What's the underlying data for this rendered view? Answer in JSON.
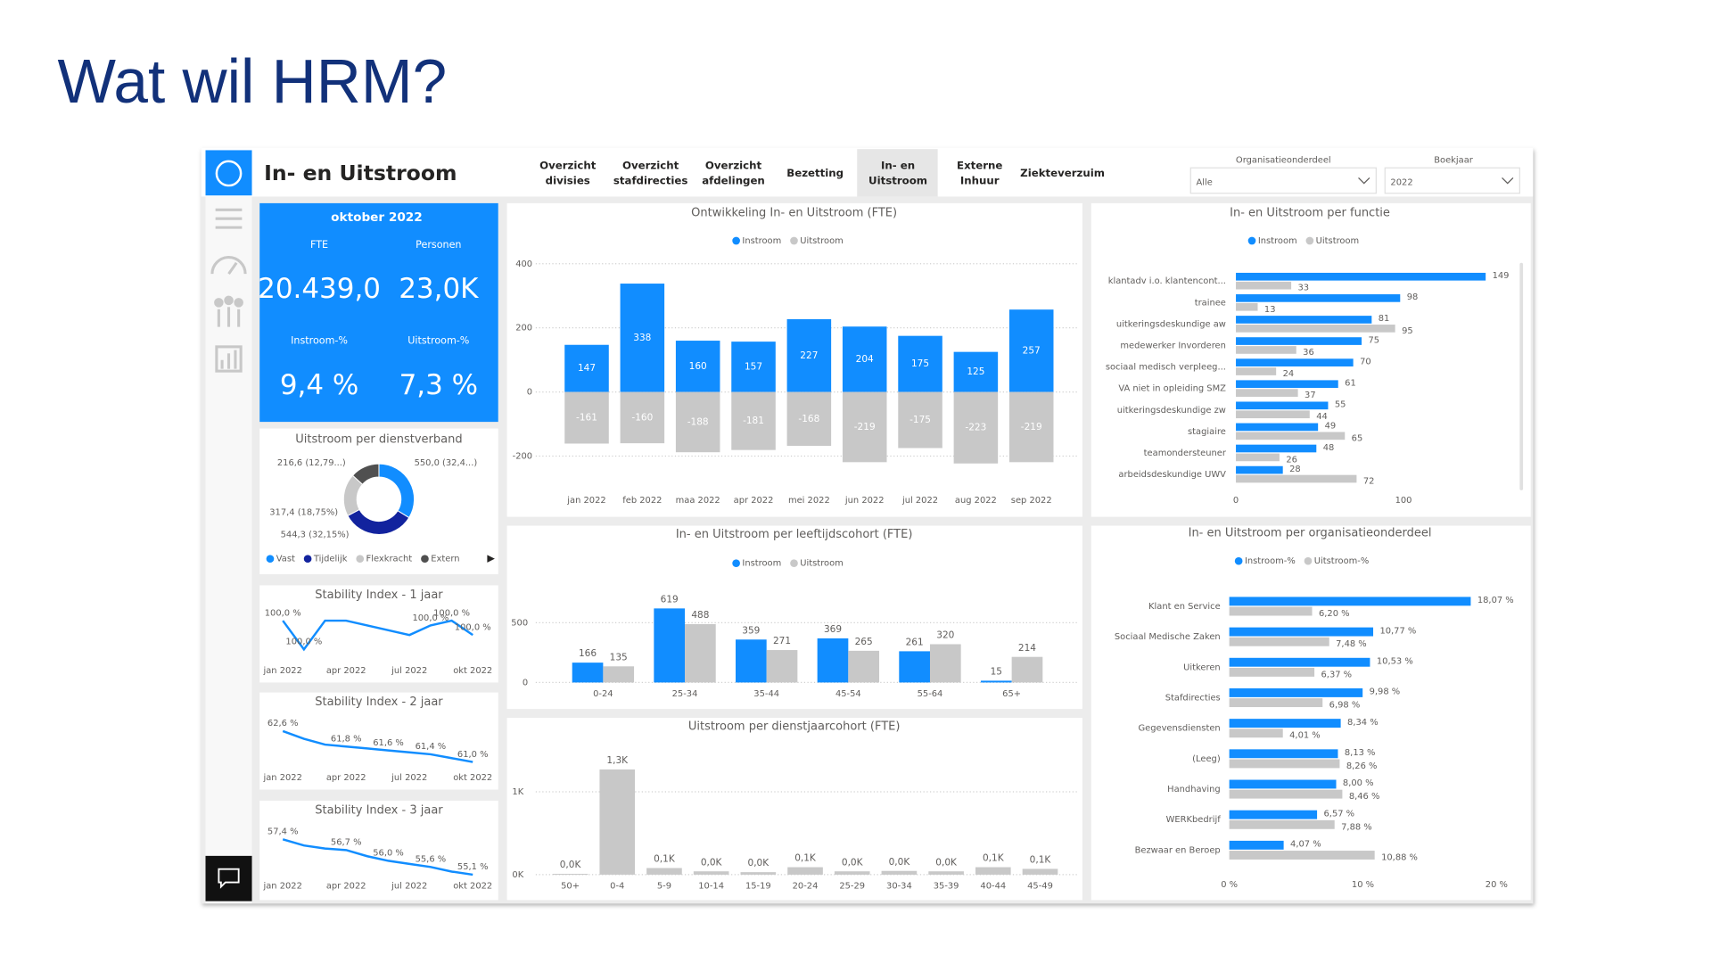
{
  "slide_title": "Wat wil HRM?",
  "header": {
    "title": "In- en Uitstroom"
  },
  "nav": [
    [
      "Overzicht",
      "divisies"
    ],
    [
      "Overzicht",
      "stafdirecties"
    ],
    [
      "Overzicht",
      "afdelingen"
    ],
    [
      "Bezetting"
    ],
    [
      "In- en",
      "Uitstroom"
    ],
    [
      "Externe",
      "Inhuur"
    ],
    [
      "Ziekteverzuim"
    ]
  ],
  "filters": [
    {
      "label": "Organisatieonderdeel",
      "value": "Alle"
    },
    {
      "label": "Boekjaar",
      "value": "2022"
    }
  ],
  "kpi": {
    "period": "oktober 2022",
    "items": [
      {
        "label": "FTE",
        "value": "20.439,0"
      },
      {
        "label": "Personen",
        "value": "23,0K"
      },
      {
        "label": "Instroom-%",
        "value": "9,4 %"
      },
      {
        "label": "Uitstroom-%",
        "value": "7,3 %"
      }
    ]
  },
  "chart_data": [
    {
      "type": "bar",
      "stacked": true,
      "title": "Ontwikkeling In- en Uitstroom (FTE)",
      "categories": [
        "jan 2022",
        "feb 2022",
        "maa 2022",
        "apr 2022",
        "mei 2022",
        "jun 2022",
        "jul 2022",
        "aug 2022",
        "sep 2022"
      ],
      "series": [
        {
          "name": "Instroom",
          "color": "#118dff",
          "values": [
            147,
            338,
            160,
            157,
            227,
            204,
            175,
            125,
            257
          ]
        },
        {
          "name": "Uitstroom",
          "color": "#c8c8c8",
          "values": [
            -161,
            -160,
            -188,
            -181,
            -168,
            -219,
            -175,
            -223,
            -219
          ]
        }
      ],
      "ylim": [
        -250,
        420
      ],
      "yticks": [
        400,
        200,
        0,
        -200
      ],
      "grid": true
    },
    {
      "type": "hbar",
      "title": "In- en Uitstroom per functie",
      "categories": [
        "klantadv i.o. klantencont...",
        "trainee",
        "uitkeringsdeskundige aw",
        "medewerker Invorderen",
        "sociaal medisch verpleeg...",
        "VA niet in opleiding SMZ",
        "uitkeringsdeskundige zw",
        "stagiaire",
        "teamondersteuner",
        "arbeidsdeskundige UWV"
      ],
      "series": [
        {
          "name": "Instroom",
          "color": "#118dff",
          "values": [
            149,
            98,
            81,
            75,
            70,
            61,
            55,
            49,
            48,
            28
          ]
        },
        {
          "name": "Uitstroom",
          "color": "#c8c8c8",
          "values": [
            33,
            13,
            95,
            36,
            24,
            37,
            44,
            65,
            26,
            72
          ]
        }
      ],
      "xlim": [
        0,
        168
      ],
      "xticks": [
        0,
        100
      ]
    },
    {
      "type": "donut",
      "title": "Uitstroom per dienstverband",
      "categories": [
        "Vast",
        "Tijdelijk",
        "Flexkracht",
        "Extern"
      ],
      "values": [
        550.0,
        544.3,
        317.4,
        216.6
      ],
      "value_labels": [
        "550,0 (32,4...)",
        "544,3 (32,15%)",
        "317,4 (18,75%)",
        "216,6 (12,79...)"
      ],
      "colors": [
        "#118dff",
        "#12239e",
        "#c8c8c8",
        "#505050"
      ]
    },
    {
      "type": "line",
      "title": "Stability Index - 1 jaar",
      "categories": [
        "jan 2022",
        null,
        null,
        "apr 2022",
        null,
        null,
        "jul 2022",
        null,
        null,
        "okt 2022"
      ],
      "values": [
        99.99,
        99.96,
        99.99,
        99.99,
        99.985,
        99.98,
        99.975,
        99.985,
        99.99,
        99.975
      ],
      "value_labels": [
        "100,0 %",
        "100,0 %",
        null,
        null,
        null,
        null,
        null,
        "100,0 %",
        "100,0 %",
        "100,0 %"
      ],
      "color": "#118dff"
    },
    {
      "type": "line",
      "title": "Stability Index - 2 jaar",
      "categories": [
        "jan 2022",
        null,
        null,
        "apr 2022",
        null,
        null,
        "jul 2022",
        null,
        null,
        "okt 2022"
      ],
      "values": [
        62.6,
        62.2,
        61.9,
        61.8,
        61.7,
        61.6,
        61.5,
        61.4,
        61.2,
        61.0
      ],
      "value_labels": [
        "62,6 %",
        null,
        null,
        "61,8 %",
        null,
        "61,6 %",
        null,
        "61,4 %",
        null,
        "61,0 %"
      ],
      "color": "#118dff"
    },
    {
      "type": "line",
      "title": "Stability Index - 3 jaar",
      "categories": [
        "jan 2022",
        null,
        null,
        "apr 2022",
        null,
        null,
        "jul 2022",
        null,
        null,
        "okt 2022"
      ],
      "values": [
        57.4,
        57.0,
        56.8,
        56.7,
        56.3,
        56.0,
        55.8,
        55.6,
        55.3,
        55.1
      ],
      "value_labels": [
        "57,4 %",
        null,
        null,
        "56,7 %",
        null,
        "56,0 %",
        null,
        "55,6 %",
        null,
        "55,1 %"
      ],
      "color": "#118dff"
    },
    {
      "type": "bar",
      "title": "In- en Uitstroom per leeftijdscohort (FTE)",
      "categories": [
        "0-24",
        "25-34",
        "35-44",
        "45-54",
        "55-64",
        "65+"
      ],
      "series": [
        {
          "name": "Instroom",
          "color": "#118dff",
          "values": [
            166,
            619,
            359,
            369,
            261,
            15
          ]
        },
        {
          "name": "Uitstroom",
          "color": "#c8c8c8",
          "values": [
            135,
            488,
            271,
            265,
            320,
            214
          ]
        }
      ],
      "ylim": [
        0,
        720
      ],
      "yticks": [
        0,
        500
      ],
      "grid": true
    },
    {
      "type": "bar",
      "title": "Uitstroom per dienstjaarcohort (FTE)",
      "categories": [
        "50+",
        "0-4",
        "5-9",
        "10-14",
        "15-19",
        "20-24",
        "25-29",
        "30-34",
        "35-39",
        "40-44",
        "45-49"
      ],
      "values": [
        10,
        1270,
        80,
        40,
        30,
        90,
        40,
        45,
        40,
        90,
        70
      ],
      "value_labels": [
        "0,0K",
        "1,3K",
        "0,1K",
        "0,0K",
        "0,0K",
        "0,1K",
        "0,0K",
        "0,0K",
        "0,0K",
        "0,1K",
        "0,1K"
      ],
      "color": "#c8c8c8",
      "ylim": [
        0,
        1500
      ],
      "yticks": [
        {
          "value": 0,
          "label": "0K"
        },
        {
          "value": 1000,
          "label": "1K"
        }
      ],
      "grid": true
    },
    {
      "type": "hbar",
      "title": "In- en Uitstroom per organisatieonderdeel",
      "categories": [
        "Klant en Service",
        "Sociaal Medische Zaken",
        "Uitkeren",
        "Stafdirecties",
        "Gegevensdiensten",
        "(Leeg)",
        "Handhaving",
        "WERKbedrijf",
        "Bezwaar en Beroep"
      ],
      "series": [
        {
          "name": "Instroom-%",
          "color": "#118dff",
          "values": [
            18.07,
            10.77,
            10.53,
            9.98,
            8.34,
            8.13,
            8.0,
            6.57,
            4.07
          ],
          "value_labels": [
            "18,07 %",
            "10,77 %",
            "10,53 %",
            "9,98 %",
            "8,34 %",
            "8,13 %",
            "8,00 %",
            "6,57 %",
            "4,07 %"
          ]
        },
        {
          "name": "Uitstroom-%",
          "color": "#c8c8c8",
          "values": [
            6.2,
            7.48,
            6.37,
            6.98,
            4.01,
            8.26,
            8.46,
            7.88,
            10.88
          ],
          "value_labels": [
            "6,20 %",
            "7,48 %",
            "6,37 %",
            "6,98 %",
            "4,01 %",
            "8,26 %",
            "8,46 %",
            "7,88 %",
            "10,88 %"
          ]
        }
      ],
      "xlim": [
        0,
        20
      ],
      "xticks": [
        {
          "value": 0,
          "label": "0 %"
        },
        {
          "value": 10,
          "label": "10 %"
        },
        {
          "value": 20,
          "label": "20 %"
        }
      ]
    }
  ]
}
